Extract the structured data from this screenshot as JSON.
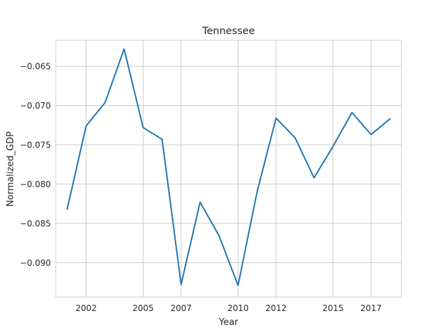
{
  "chart_data": {
    "type": "line",
    "title": "Tennessee",
    "xlabel": "Year",
    "ylabel": "Normalized_GDP",
    "xlim": [
      2000.4,
      2018.6
    ],
    "ylim": [
      -0.0944,
      -0.0617
    ],
    "x_ticks": [
      2002,
      2005,
      2007,
      2010,
      2012,
      2015,
      2017
    ],
    "x_tick_labels": [
      "2002",
      "2005",
      "2007",
      "2010",
      "2012",
      "2015",
      "2017"
    ],
    "y_ticks": [
      -0.065,
      -0.07,
      -0.075,
      -0.08,
      -0.085,
      -0.09
    ],
    "y_tick_labels": [
      "−0.065",
      "−0.070",
      "−0.075",
      "−0.080",
      "−0.085",
      "−0.090"
    ],
    "grid": true,
    "series": [
      {
        "color": "#1f77b4",
        "x": [
          2001,
          2002,
          2003,
          2004,
          2005,
          2006,
          2007,
          2008,
          2009,
          2010,
          2011,
          2012,
          2013,
          2014,
          2015,
          2016,
          2017,
          2018
        ],
        "values": [
          -0.0832,
          -0.0726,
          -0.0696,
          -0.0628,
          -0.0728,
          -0.0743,
          -0.0928,
          -0.0823,
          -0.0866,
          -0.0929,
          -0.081,
          -0.0716,
          -0.0741,
          -0.0792,
          -0.0752,
          -0.0709,
          -0.0737,
          -0.0717
        ]
      }
    ]
  }
}
